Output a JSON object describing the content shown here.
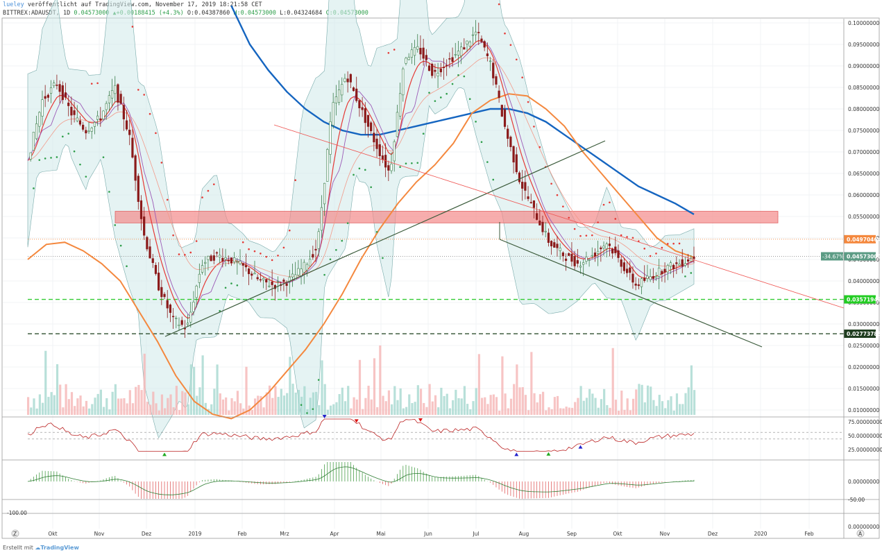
{
  "header": {
    "line1_user": "lueley",
    "line1_rest": " veröffentlicht auf TradingView.com, November 17, 2019 18:21:58 CET",
    "symbol": "BITTREX:ADAUSDT, 1D",
    "last": "0.04573000",
    "change": "+0.00188415 (+4.3%)",
    "ohlc_o": "O:0.04387860",
    "ohlc_h": "H:0.04573000",
    "ohlc_l": "L:0.04324684",
    "ohlc_c": "C:0.04573000"
  },
  "footer": {
    "created": "Erstellt mit",
    "brand": "TradingView"
  },
  "colors": {
    "up": "#26a69a",
    "down": "#ef5350",
    "red": "#e53935",
    "ma200": "#1565c0",
    "ma_orange": "#f4883e",
    "bb_fill": "#cfe9ea",
    "zone": "#f48a8a",
    "green_dash": "#33cc33",
    "dark_dash": "#2f4f2f",
    "trend": "#3b5b3b"
  },
  "chart_data": {
    "type": "line",
    "title": "BITTREX:ADAUSDT, 1D",
    "price_axis": {
      "ticks": [
        "0.10000000",
        "0.09500000",
        "0.09000000",
        "0.08500000",
        "0.08000000",
        "0.07500000",
        "0.07000000",
        "0.06500000",
        "0.06000000",
        "0.05500000",
        "0.05000000",
        "0.04500000",
        "0.04000000",
        "0.03500000",
        "0.03000000",
        "0.02500000",
        "0.02000000",
        "0.01500000",
        "0.01000000"
      ],
      "tick_values": [
        0.1,
        0.095,
        0.09,
        0.085,
        0.08,
        0.075,
        0.07,
        0.065,
        0.06,
        0.055,
        0.05,
        0.045,
        0.04,
        0.035,
        0.03,
        0.025,
        0.02,
        0.015,
        0.01
      ],
      "labels": [
        {
          "text": "0.04970464",
          "value": 0.04970464,
          "color": "#f4883e"
        },
        {
          "text": "0.04573000",
          "value": 0.04573,
          "color": "#5b9b84",
          "prefix": "-34.67%"
        },
        {
          "text": "0.03571943",
          "value": 0.03571943,
          "color": "#22cc22"
        },
        {
          "text": "0.02773785",
          "value": 0.02773785,
          "color": "#1f3d1f"
        }
      ]
    },
    "time_axis": [
      "Okt",
      "Nov",
      "Dez",
      "2019",
      "Feb",
      "Mrz",
      "Apr",
      "Mai",
      "Jun",
      "Jul",
      "Aug",
      "Sep",
      "Okt",
      "Nov",
      "Dez",
      "2020",
      "Feb"
    ],
    "series": [
      {
        "name": "close",
        "values": [
          0.068,
          0.082,
          0.086,
          0.079,
          0.075,
          0.078,
          0.085,
          0.074,
          0.051,
          0.039,
          0.031,
          0.029,
          0.044,
          0.046,
          0.045,
          0.043,
          0.04,
          0.039,
          0.04,
          0.043,
          0.048,
          0.08,
          0.088,
          0.08,
          0.072,
          0.065,
          0.092,
          0.094,
          0.088,
          0.091,
          0.094,
          0.098,
          0.09,
          0.075,
          0.063,
          0.056,
          0.049,
          0.046,
          0.044,
          0.046,
          0.049,
          0.044,
          0.039,
          0.041,
          0.043,
          0.044,
          0.0457
        ]
      },
      {
        "name": "ma200",
        "values": [
          null,
          null,
          null,
          null,
          null,
          null,
          null,
          null,
          null,
          null,
          null,
          0.104,
          0.095,
          0.089,
          0.084,
          0.08,
          0.077,
          0.075,
          0.074,
          0.074,
          0.075,
          0.076,
          0.077,
          0.078,
          0.079,
          0.08,
          0.08,
          0.079,
          0.077,
          0.074,
          0.071,
          0.068,
          0.065,
          0.062,
          0.06,
          0.058,
          0.0555
        ]
      },
      {
        "name": "ma_orange",
        "values": [
          0.045,
          0.0485,
          0.049,
          0.047,
          0.044,
          0.04,
          0.033,
          0.026,
          0.018,
          0.012,
          0.009,
          0.008,
          0.01,
          0.014,
          0.019,
          0.024,
          0.03,
          0.037,
          0.045,
          0.052,
          0.058,
          0.063,
          0.067,
          0.072,
          0.079,
          0.082,
          0.0835,
          0.083,
          0.08,
          0.076,
          0.07,
          0.065,
          0.06,
          0.055,
          0.05,
          0.047,
          0.0455
        ]
      }
    ],
    "levels": [
      {
        "value": 0.04970464,
        "style": "dotted",
        "color": "#f4883e"
      },
      {
        "value": 0.04573,
        "style": "dotted",
        "color": "#777"
      },
      {
        "value": 0.03571943,
        "style": "dashed",
        "color": "#33cc33"
      },
      {
        "value": 0.02773785,
        "style": "dashed",
        "color": "#2f4f2f"
      }
    ],
    "zone": {
      "low": 0.0535,
      "high": 0.0562
    },
    "rsi": {
      "ticks": [
        "75.00000000",
        "50.00000000",
        "25.00000000"
      ],
      "tick_values": [
        75,
        50,
        25
      ],
      "last": 63
    },
    "osc": {
      "ticks": [
        "0.00000000",
        "-50.00"
      ],
      "tick_values": [
        0,
        -50
      ]
    },
    "bottom": {
      "ticks": [
        "-100.00",
        "0.00000000"
      ]
    },
    "ylim": [
      0.0095,
      0.1005
    ]
  }
}
